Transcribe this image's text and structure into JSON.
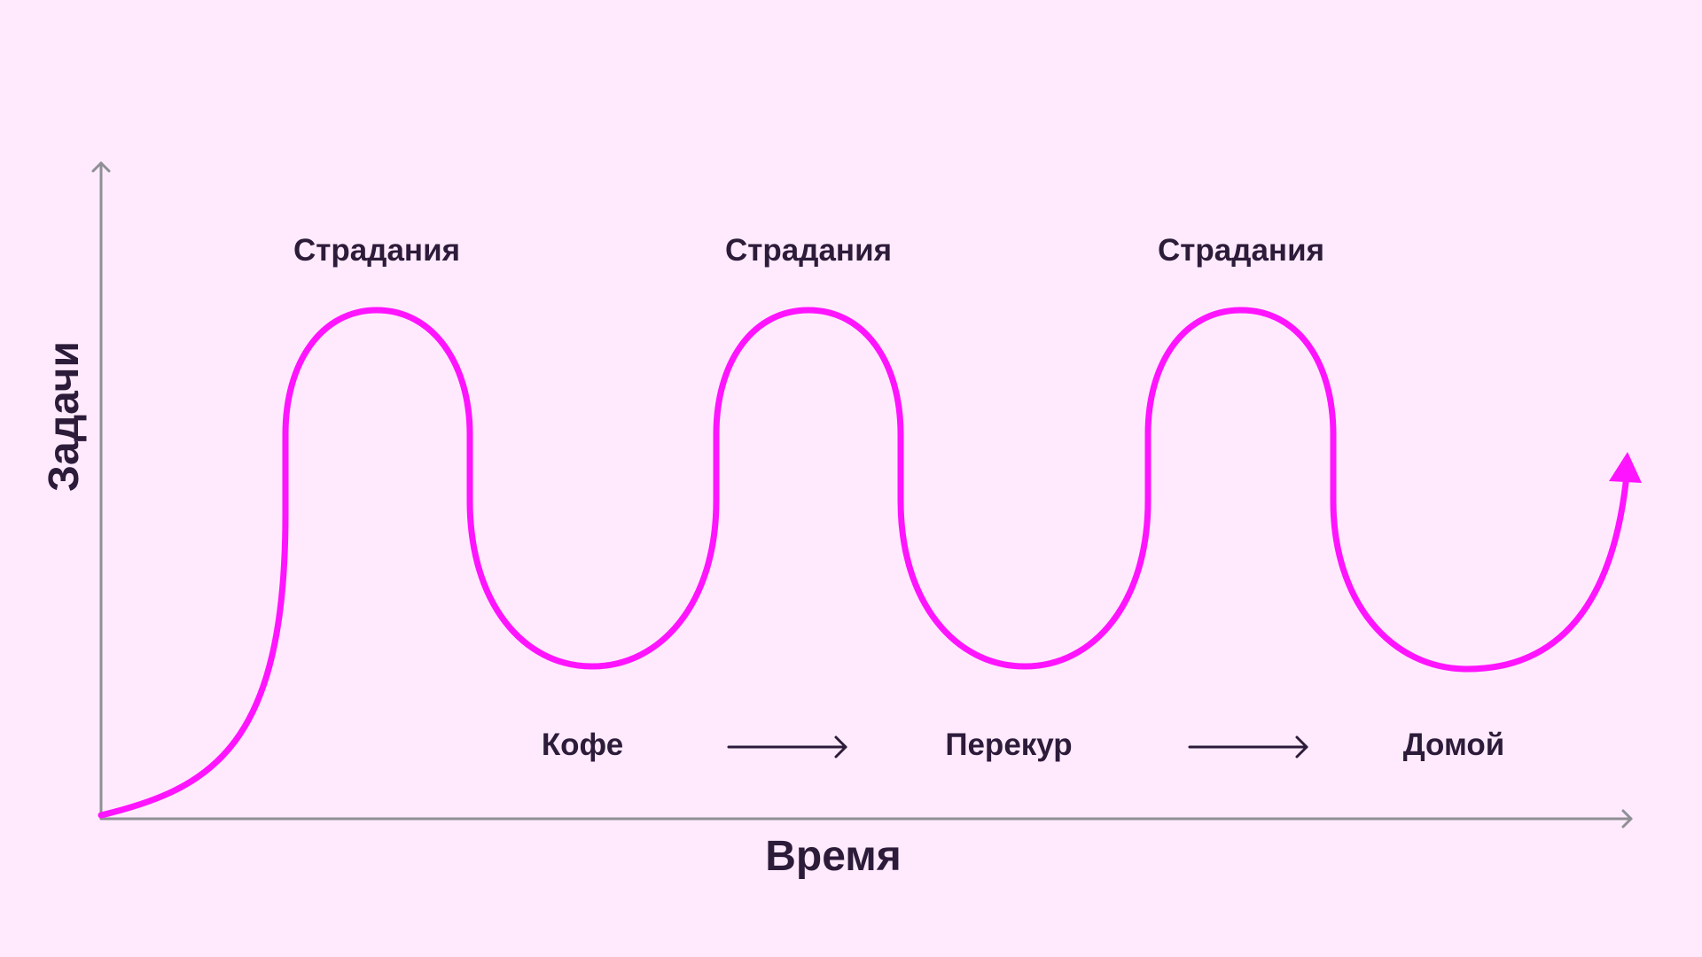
{
  "axes": {
    "x_title": "Время",
    "y_title": "Задачи"
  },
  "peaks": [
    {
      "label": "Страдания"
    },
    {
      "label": "Страдания"
    },
    {
      "label": "Страдания"
    }
  ],
  "steps": [
    {
      "label": "Кофе"
    },
    {
      "label": "Перекур"
    },
    {
      "label": "Домой"
    }
  ],
  "colors": {
    "background": "#FFEAFD",
    "curve": "#FF14FF",
    "axis": "#8F8F96",
    "text": "#2D1B3A",
    "arrow": "#2D1B3A"
  }
}
